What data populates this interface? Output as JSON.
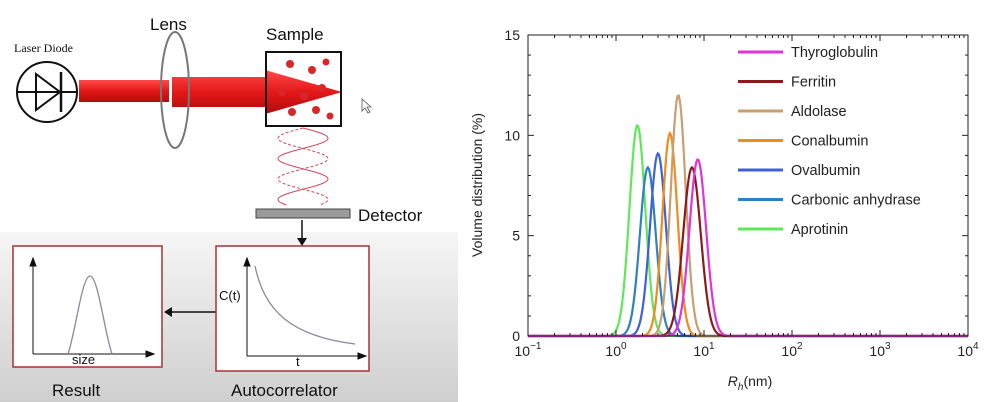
{
  "schematic": {
    "laser_label": "Laser Diode",
    "lens_label": "Lens",
    "sample_label": "Sample",
    "detector_label": "Detector",
    "result_label": "Result",
    "autocorrelator_label": "Autocorrelator",
    "result_axis_label": "size",
    "autocorr_y_label": "C(t)",
    "autocorr_x_label": "t",
    "colors": {
      "beam": "#e31818",
      "box_border": "#a83232",
      "particle": "#d9262a",
      "wave": "#d24a5a"
    }
  },
  "chart_data": {
    "type": "line",
    "xlabel_main": "R",
    "xlabel_sub": "h",
    "xlabel_unit": "(nm)",
    "ylabel": "Volume distribution (%)",
    "x_scale": "log",
    "xlim": [
      0.1,
      10000
    ],
    "ylim": [
      0,
      15
    ],
    "x_ticks": [
      0.1,
      1,
      10,
      100,
      1000,
      10000
    ],
    "x_tick_labels": [
      {
        "base": "10",
        "exp": "−1"
      },
      {
        "base": "10",
        "exp": "0"
      },
      {
        "base": "10",
        "exp": "1"
      },
      {
        "base": "10",
        "exp": "2"
      },
      {
        "base": "10",
        "exp": "3"
      },
      {
        "base": "10",
        "exp": "4"
      }
    ],
    "y_ticks": [
      0,
      5,
      10,
      15
    ],
    "y_tick_labels": [
      "0",
      "5",
      "10",
      "15"
    ],
    "legend_position": "top-right",
    "series": [
      {
        "name": "Thyroglobulin",
        "color": "#e033d8",
        "peak_x": 8.5,
        "peak_y": 8.8,
        "width": 0.095
      },
      {
        "name": "Ferritin",
        "color": "#8b1a1a",
        "peak_x": 7.3,
        "peak_y": 8.4,
        "width": 0.1
      },
      {
        "name": "Aldolase",
        "color": "#c8a070",
        "peak_x": 5.1,
        "peak_y": 12.0,
        "width": 0.085
      },
      {
        "name": "Conalbumin",
        "color": "#f08c1e",
        "peak_x": 4.1,
        "peak_y": 10.1,
        "width": 0.085
      },
      {
        "name": "Ovalbumin",
        "color": "#4060d8",
        "peak_x": 3.0,
        "peak_y": 9.1,
        "width": 0.09
      },
      {
        "name": "Carbonic anhydrase",
        "color": "#2f7fc4",
        "peak_x": 2.3,
        "peak_y": 8.4,
        "width": 0.09
      },
      {
        "name": "Aprotinin",
        "color": "#5ee85a",
        "peak_x": 1.75,
        "peak_y": 10.5,
        "width": 0.09
      }
    ]
  }
}
